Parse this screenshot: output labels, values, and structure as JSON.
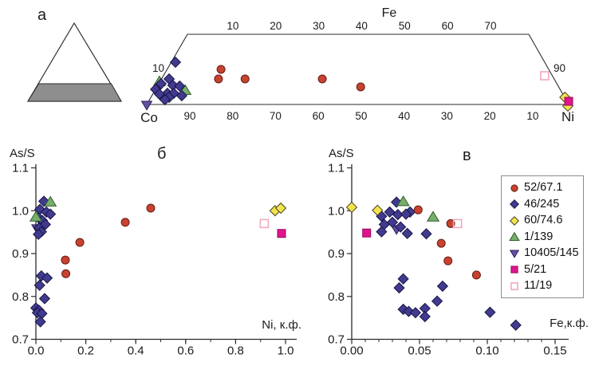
{
  "colors": {
    "axis": "#2b2b2b",
    "text": "#1c1c1c",
    "background": "#ffffff",
    "inset_fill": "#8e8e8e",
    "legend_border": "#8c8c8c"
  },
  "markers": {
    "circle-red": {
      "shape": "circle",
      "fill": "#c8422f",
      "stroke": "#641d12"
    },
    "diamond-navy": {
      "shape": "diamond",
      "fill": "#413b8f",
      "stroke": "#191447"
    },
    "diamond-yellow": {
      "shape": "diamond",
      "fill": "#f3e44f",
      "stroke": "#45421a"
    },
    "triangle-up-green": {
      "shape": "triangle-up",
      "fill": "#77ae6c",
      "stroke": "#2e5c28"
    },
    "triangle-down-purple": {
      "shape": "triangle-down",
      "fill": "#66519f",
      "stroke": "#271d5b"
    },
    "square-magenta": {
      "shape": "square",
      "fill": "#e0148c",
      "stroke": "#97095e"
    },
    "square-open-pink": {
      "shape": "square-open",
      "fill": "none",
      "stroke": "#efaaba"
    }
  },
  "legend": {
    "items": [
      {
        "label": "52/67.1",
        "marker": "circle-red"
      },
      {
        "label": "46/245",
        "marker": "diamond-navy"
      },
      {
        "label": "60/74.6",
        "marker": "diamond-yellow"
      },
      {
        "label": "1/139",
        "marker": "triangle-up-green"
      },
      {
        "label": "10405/145",
        "marker": "triangle-down-purple"
      },
      {
        "label": "5/21",
        "marker": "square-magenta"
      },
      {
        "label": "11/19",
        "marker": "square-open-pink"
      }
    ]
  },
  "chart_data": [
    {
      "id": "a",
      "type": "scatter",
      "variant": "ternary-trapezoid",
      "title": "а",
      "top_axis_label": "Fe",
      "left_corner_label": "Co",
      "right_corner_label": "Ni",
      "left_edge_tick": "10",
      "right_edge_tick": "90",
      "top_ticks": [
        "10",
        "20",
        "30",
        "40",
        "50",
        "60",
        "70"
      ],
      "bottom_ticks": [
        "90",
        "80",
        "70",
        "60",
        "50",
        "40",
        "30",
        "20",
        "10"
      ],
      "inset_note": "key triangle with shaded bottom band",
      "coord_note": "points as fractions: u = 0..1 along Co->Ni base, v = 0..1 base->top edge",
      "series": [
        {
          "name": "10405/145",
          "marker": "triangle-down-purple",
          "points": [
            [
              0.0,
              -0.011
            ]
          ]
        },
        {
          "name": "1/139",
          "marker": "triangle-up-green",
          "points": [
            [
              0.03,
              0.33
            ],
            [
              0.091,
              0.205
            ]
          ]
        },
        {
          "name": "46/245",
          "marker": "diamond-navy",
          "points": [
            [
              0.068,
              0.602
            ],
            [
              0.053,
              0.364
            ],
            [
              0.034,
              0.295
            ],
            [
              0.062,
              0.273
            ],
            [
              0.078,
              0.261
            ],
            [
              0.021,
              0.216
            ],
            [
              0.049,
              0.159
            ],
            [
              0.064,
              0.159
            ],
            [
              0.03,
              0.148
            ],
            [
              0.083,
              0.125
            ],
            [
              0.053,
              0.102
            ],
            [
              0.043,
              0.068
            ]
          ]
        },
        {
          "name": "52/67.1",
          "marker": "circle-red",
          "points": [
            [
              0.176,
              0.5
            ],
            [
              0.17,
              0.364
            ],
            [
              0.233,
              0.364
            ],
            [
              0.416,
              0.364
            ],
            [
              0.507,
              0.25
            ]
          ]
        },
        {
          "name": "60/74.6",
          "marker": "diamond-yellow",
          "points": [
            [
              0.991,
              0.102
            ],
            [
              0.998,
              -0.023
            ]
          ]
        },
        {
          "name": "5/21",
          "marker": "square-magenta",
          "points": [
            [
              1.0,
              0.045
            ]
          ]
        },
        {
          "name": "11/19",
          "marker": "square-open-pink",
          "points": [
            [
              0.943,
              0.409
            ]
          ]
        }
      ]
    },
    {
      "id": "b",
      "type": "scatter",
      "title": "б",
      "xlabel": "Ni, к.ф.",
      "ylabel": "As/S",
      "xlim": [
        0,
        1.045
      ],
      "ylim": [
        0.7,
        1.1
      ],
      "x_major_ticks": [
        0,
        0.2,
        0.4,
        0.6,
        0.8,
        1.0
      ],
      "x_tick_labels": [
        "0.0",
        "0.2",
        "0.4",
        "0.6",
        "0.8",
        "1.0"
      ],
      "x_minor_step": 0.1,
      "y_ticks": [
        0.7,
        0.8,
        0.9,
        1.0,
        1.1
      ],
      "y_tick_labels": [
        "0.7",
        "0.8",
        "0.9",
        "1.0",
        "1.1"
      ],
      "series": [
        {
          "name": "10405/145",
          "marker": "triangle-down-purple",
          "points": [
            [
              0.004,
              0.958
            ]
          ]
        },
        {
          "name": "46/245",
          "marker": "diamond-navy",
          "points": [
            [
              0.032,
              1.022
            ],
            [
              0.016,
              1.003
            ],
            [
              0.042,
              0.997
            ],
            [
              0.058,
              0.992
            ],
            [
              0.01,
              0.984
            ],
            [
              0.026,
              0.977
            ],
            [
              0.038,
              0.968
            ],
            [
              0.013,
              0.96
            ],
            [
              0.022,
              0.951
            ],
            [
              0.01,
              0.945
            ],
            [
              0.022,
              0.848
            ],
            [
              0.045,
              0.843
            ],
            [
              0.015,
              0.826
            ],
            [
              0.035,
              0.795
            ],
            [
              0.0,
              0.773
            ],
            [
              0.012,
              0.768
            ],
            [
              0.006,
              0.762
            ],
            [
              0.024,
              0.76
            ],
            [
              0.018,
              0.741
            ]
          ]
        },
        {
          "name": "1/139",
          "marker": "triangle-up-green",
          "points": [
            [
              0.0,
              0.986
            ],
            [
              0.058,
              1.021
            ]
          ]
        },
        {
          "name": "60/74.6",
          "marker": "diamond-yellow",
          "points": [
            [
              0.958,
              1.0
            ],
            [
              0.981,
              1.006
            ]
          ]
        },
        {
          "name": "5/21",
          "marker": "square-magenta",
          "points": [
            [
              0.984,
              0.947
            ]
          ]
        },
        {
          "name": "52/67.1",
          "marker": "circle-red",
          "points": [
            [
              0.118,
              0.885
            ],
            [
              0.12,
              0.853
            ],
            [
              0.176,
              0.926
            ],
            [
              0.358,
              0.973
            ],
            [
              0.46,
              1.006
            ]
          ]
        },
        {
          "name": "11/19",
          "marker": "square-open-pink",
          "points": [
            [
              0.915,
              0.97
            ]
          ]
        }
      ]
    },
    {
      "id": "v",
      "type": "scatter",
      "title": "в",
      "xlabel": "Fe,к.ф.",
      "ylabel": "As/S",
      "xlim": [
        0,
        0.16
      ],
      "ylim": [
        0.7,
        1.1
      ],
      "x_major_ticks": [
        0,
        0.05,
        0.1,
        0.15
      ],
      "x_tick_labels": [
        "0.00",
        "0.05",
        "0.10",
        "0.15"
      ],
      "x_minor_step": 0.01,
      "y_ticks": [
        0.7,
        0.8,
        0.9,
        1.0,
        1.1
      ],
      "y_tick_labels": [
        "0.7",
        "0.8",
        "0.9",
        "1.0",
        "1.1"
      ],
      "series": [
        {
          "name": "10405/145",
          "marker": "triangle-down-purple",
          "points": [
            [
              0.033,
              0.956
            ]
          ]
        },
        {
          "name": "46/245",
          "marker": "diamond-navy",
          "points": [
            [
              0.033,
              1.02
            ],
            [
              0.028,
              0.997
            ],
            [
              0.043,
              0.997
            ],
            [
              0.034,
              0.991
            ],
            [
              0.04,
              0.992
            ],
            [
              0.022,
              0.987
            ],
            [
              0.024,
              0.968
            ],
            [
              0.03,
              0.973
            ],
            [
              0.036,
              0.962
            ],
            [
              0.022,
              0.951
            ],
            [
              0.041,
              0.947
            ],
            [
              0.055,
              0.946
            ],
            [
              0.038,
              0.841
            ],
            [
              0.035,
              0.82
            ],
            [
              0.067,
              0.824
            ],
            [
              0.063,
              0.789
            ],
            [
              0.038,
              0.77
            ],
            [
              0.042,
              0.765
            ],
            [
              0.047,
              0.762
            ],
            [
              0.054,
              0.772
            ],
            [
              0.054,
              0.753
            ],
            [
              0.102,
              0.763
            ],
            [
              0.121,
              0.733
            ]
          ]
        },
        {
          "name": "1/139",
          "marker": "triangle-up-green",
          "points": [
            [
              0.038,
              1.022
            ],
            [
              0.06,
              0.986
            ]
          ]
        },
        {
          "name": "60/74.6",
          "marker": "diamond-yellow",
          "points": [
            [
              0.0,
              1.008
            ],
            [
              0.019,
              1.001
            ]
          ]
        },
        {
          "name": "5/21",
          "marker": "square-magenta",
          "points": [
            [
              0.011,
              0.948
            ]
          ]
        },
        {
          "name": "52/67.1",
          "marker": "circle-red",
          "points": [
            [
              0.049,
              1.002
            ],
            [
              0.073,
              0.97
            ],
            [
              0.066,
              0.924
            ],
            [
              0.071,
              0.883
            ],
            [
              0.092,
              0.85
            ]
          ]
        },
        {
          "name": "11/19",
          "marker": "square-open-pink",
          "points": [
            [
              0.078,
              0.97
            ]
          ]
        }
      ]
    }
  ]
}
